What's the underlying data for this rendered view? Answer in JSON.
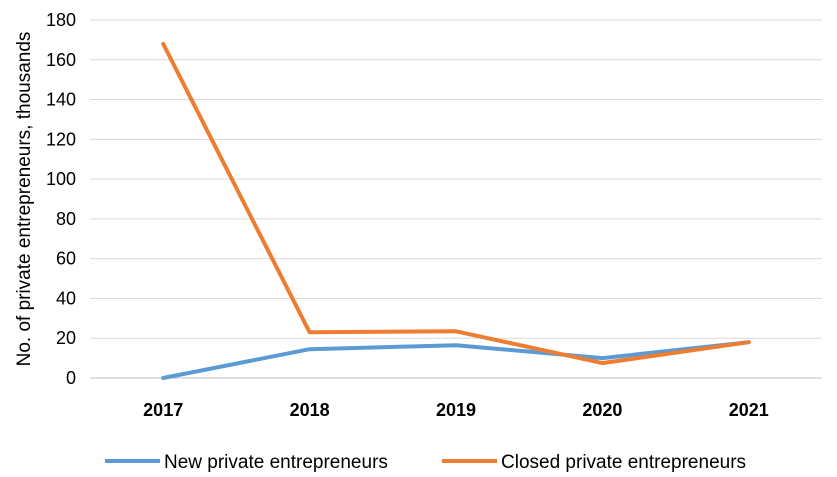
{
  "chart_data": {
    "type": "line",
    "title": "",
    "xlabel": "",
    "ylabel": "No. of private entrepreneurs, thousands",
    "categories": [
      "2017",
      "2018",
      "2019",
      "2020",
      "2021"
    ],
    "ylim": [
      0,
      180
    ],
    "yticks": [
      0,
      20,
      40,
      60,
      80,
      100,
      120,
      140,
      160,
      180
    ],
    "grid": "horizontal",
    "legend_position": "bottom",
    "series": [
      {
        "name": "New private entrepreneurs",
        "color": "#5B9BD5",
        "values": [
          0,
          14.5,
          16.5,
          10,
          18
        ]
      },
      {
        "name": "Closed private entrepreneurs",
        "color": "#ED7D31",
        "values": [
          168,
          23,
          23.5,
          7.5,
          18
        ]
      }
    ]
  }
}
